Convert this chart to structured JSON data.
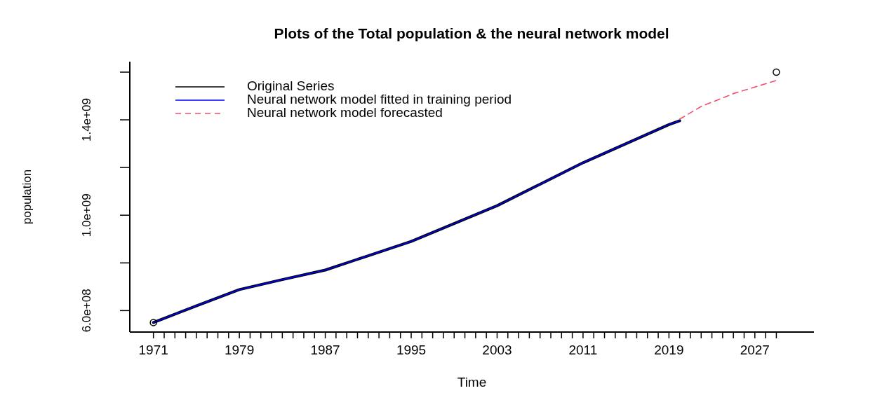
{
  "chart_data": {
    "type": "line",
    "title": "Plots of the Total population & the neural network model",
    "xlabel": "Time",
    "ylabel": "population",
    "xlim": [
      1968.8,
      2032.5
    ],
    "ylim": [
      510000000,
      1644000000
    ],
    "xticks": [
      1971,
      {
        "value": 1972,
        "label": null
      },
      {
        "value": 1973,
        "label": null
      },
      {
        "value": 1974,
        "label": null
      },
      {
        "value": 1975,
        "label": null
      },
      {
        "value": 1976,
        "label": null
      },
      {
        "value": 1977,
        "label": null
      },
      {
        "value": 1978,
        "label": null
      },
      1979,
      {
        "value": 1980,
        "label": null
      },
      {
        "value": 1981,
        "label": null
      },
      {
        "value": 1982,
        "label": null
      },
      {
        "value": 1983,
        "label": null
      },
      {
        "value": 1984,
        "label": null
      },
      {
        "value": 1985,
        "label": null
      },
      {
        "value": 1986,
        "label": null
      },
      1987,
      {
        "value": 1988,
        "label": null
      },
      {
        "value": 1989,
        "label": null
      },
      {
        "value": 1990,
        "label": null
      },
      {
        "value": 1991,
        "label": null
      },
      {
        "value": 1992,
        "label": null
      },
      {
        "value": 1993,
        "label": null
      },
      {
        "value": 1994,
        "label": null
      },
      1995,
      {
        "value": 1996,
        "label": null
      },
      {
        "value": 1997,
        "label": null
      },
      {
        "value": 1998,
        "label": null
      },
      {
        "value": 1999,
        "label": null
      },
      {
        "value": 2000,
        "label": null
      },
      {
        "value": 2001,
        "label": null
      },
      {
        "value": 2002,
        "label": null
      },
      2003,
      {
        "value": 2004,
        "label": null
      },
      {
        "value": 2005,
        "label": null
      },
      {
        "value": 2006,
        "label": null
      },
      {
        "value": 2007,
        "label": null
      },
      {
        "value": 2008,
        "label": null
      },
      {
        "value": 2009,
        "label": null
      },
      {
        "value": 2010,
        "label": null
      },
      2011,
      {
        "value": 2012,
        "label": null
      },
      {
        "value": 2013,
        "label": null
      },
      {
        "value": 2014,
        "label": null
      },
      {
        "value": 2015,
        "label": null
      },
      {
        "value": 2016,
        "label": null
      },
      {
        "value": 2017,
        "label": null
      },
      {
        "value": 2018,
        "label": null
      },
      2019,
      {
        "value": 2020,
        "label": null
      },
      {
        "value": 2021,
        "label": null
      },
      {
        "value": 2022,
        "label": null
      },
      {
        "value": 2023,
        "label": null
      },
      {
        "value": 2024,
        "label": null
      },
      {
        "value": 2025,
        "label": null
      },
      {
        "value": 2026,
        "label": null
      },
      2027,
      {
        "value": 2028,
        "label": null
      },
      {
        "value": 2029,
        "label": null
      }
    ],
    "yticks": [
      {
        "value": 600000000,
        "label": "6.0e+08"
      },
      {
        "value": 800000000,
        "label": null
      },
      {
        "value": 1000000000,
        "label": "1.0e+09"
      },
      {
        "value": 1200000000,
        "label": null
      },
      {
        "value": 1400000000,
        "label": "1.4e+09"
      },
      {
        "value": 1600000000,
        "label": null
      }
    ],
    "legend": "top left",
    "grid": false,
    "series": [
      {
        "name": "Original Series",
        "color": "#000000",
        "x": [
          1971,
          1975,
          1979,
          1983,
          1987,
          1991,
          1995,
          1999,
          2003,
          2007,
          2011,
          2015,
          2019,
          2020
        ],
        "values": [
          550000000,
          620000000,
          688000000,
          730000000,
          770000000,
          830000000,
          890000000,
          965000000,
          1040000000,
          1130000000,
          1220000000,
          1300000000,
          1380000000,
          1396000000
        ]
      },
      {
        "name": "Neural network model fitted in training period",
        "color": "#0000ff",
        "x": [
          1971,
          1975,
          1979,
          1983,
          1987,
          1991,
          1995,
          1999,
          2003,
          2007,
          2011,
          2015,
          2019,
          2020
        ],
        "values": [
          550000000,
          620000000,
          688000000,
          730000000,
          770000000,
          830000000,
          890000000,
          965000000,
          1040000000,
          1130000000,
          1220000000,
          1300000000,
          1380000000,
          1396000000
        ]
      },
      {
        "name": "Neural network model forecasted",
        "color": "#f0506e",
        "line_style": "dashed",
        "x": [
          2020,
          2022,
          2025,
          2029
        ],
        "values": [
          1403000000,
          1456000000,
          1510000000,
          1565000000
        ]
      },
      {
        "type": "scatter",
        "marker": "circle",
        "color": "#000000",
        "x": [
          1971,
          2029
        ],
        "values": [
          550000000,
          1600000000
        ]
      }
    ]
  }
}
